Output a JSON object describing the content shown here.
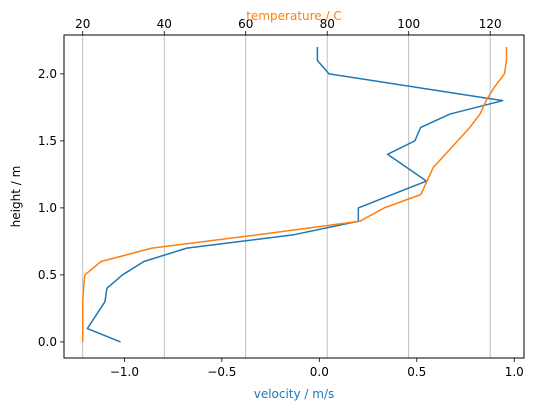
{
  "chart_data": {
    "type": "line",
    "title": "",
    "ylabel": "height / m",
    "ylim": [
      -0.12,
      2.29
    ],
    "yticks": [
      0.0,
      0.5,
      1.0,
      1.5,
      2.0
    ],
    "ytick_labels": [
      "0.0",
      "0.5",
      "1.0",
      "1.5",
      "2.0"
    ],
    "bottom_axis": {
      "label": "velocity / m/s",
      "color": "#1f77b4",
      "range": [
        -1.31,
        1.05
      ],
      "ticks": [
        -1.0,
        -0.5,
        0.0,
        0.5,
        1.0
      ],
      "tick_labels": [
        "−1.0",
        "−0.5",
        "0.0",
        "0.5",
        "1.0"
      ]
    },
    "top_axis": {
      "label": "temperature / C",
      "color": "#ff7f0e",
      "range": [
        15.4,
        128.3
      ],
      "ticks": [
        20,
        40,
        60,
        80,
        100,
        120
      ],
      "tick_labels": [
        "20",
        "40",
        "60",
        "80",
        "100",
        "120"
      ],
      "grid": true
    },
    "series": [
      {
        "axis": "bottom",
        "color": "#1f77b4",
        "x": [
          -1.02,
          -1.19,
          -1.1,
          -1.09,
          -1.01,
          -0.9,
          -0.68,
          -0.13,
          0.2,
          0.2,
          0.55,
          0.35,
          0.49,
          0.52,
          0.67,
          0.94,
          0.05,
          -0.01,
          -0.01
        ],
        "y": [
          0.0,
          0.1,
          0.3,
          0.4,
          0.5,
          0.6,
          0.7,
          0.8,
          0.9,
          1.0,
          1.2,
          1.4,
          1.5,
          1.6,
          1.7,
          1.8,
          2.0,
          2.1,
          2.2
        ]
      },
      {
        "axis": "top",
        "color": "#ff7f0e",
        "x": [
          20.0,
          20.0,
          20.0,
          20.0,
          20.2,
          20.5,
          24.5,
          37.0,
          63.0,
          88.0,
          94.0,
          103.0,
          106.0,
          112.0,
          115.0,
          117.5,
          119.0,
          121.0,
          123.5,
          124.0,
          124.0
        ],
        "y": [
          0.0,
          0.1,
          0.2,
          0.3,
          0.4,
          0.5,
          0.6,
          0.7,
          0.8,
          0.9,
          1.0,
          1.1,
          1.3,
          1.5,
          1.6,
          1.7,
          1.8,
          1.9,
          2.0,
          2.1,
          2.2
        ]
      }
    ]
  }
}
